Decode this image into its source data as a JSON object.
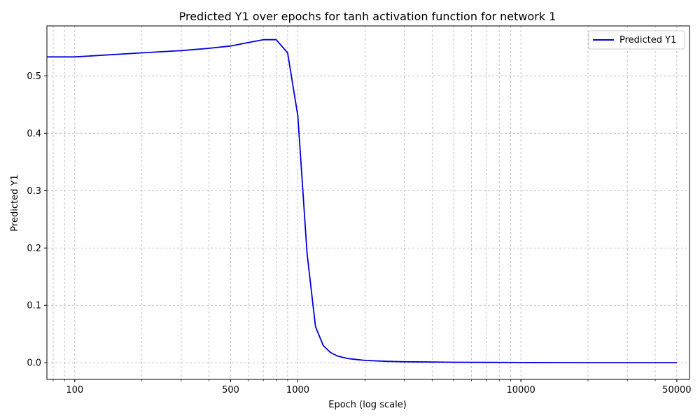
{
  "chart_data": {
    "type": "line",
    "title": "Predicted Y1 over epochs for tanh activation function for network 1",
    "xlabel": "Epoch (log scale)",
    "ylabel": "Predicted Y1",
    "x_scale": "log",
    "xlim": [
      75,
      57000
    ],
    "ylim": [
      -0.029,
      0.587
    ],
    "x_ticks": [
      100,
      500,
      1000,
      10000,
      50000
    ],
    "x_tick_labels": [
      "100",
      "500",
      "1000",
      "10000",
      "50000"
    ],
    "y_ticks": [
      0.0,
      0.1,
      0.2,
      0.3,
      0.4,
      0.5
    ],
    "y_tick_labels": [
      "0.0",
      "0.1",
      "0.2",
      "0.3",
      "0.4",
      "0.5"
    ],
    "grid": true,
    "legend_position": "top-right",
    "colors": {
      "series": "#0000dd",
      "grid": "#b0b0b0",
      "axes": "#000000"
    },
    "series": [
      {
        "name": "Predicted Y1",
        "x": [
          1,
          100,
          200,
          300,
          400,
          500,
          600,
          700,
          800,
          900,
          1000,
          1100,
          1200,
          1300,
          1400,
          1500,
          1600,
          1700,
          1800,
          2000,
          2500,
          3000,
          4000,
          5000,
          7000,
          10000,
          15000,
          20000,
          30000,
          50000
        ],
        "y": [
          0.533,
          0.533,
          0.54,
          0.544,
          0.548,
          0.552,
          0.558,
          0.563,
          0.563,
          0.54,
          0.43,
          0.19,
          0.063,
          0.03,
          0.018,
          0.012,
          0.009,
          0.007,
          0.006,
          0.004,
          0.0025,
          0.0018,
          0.0012,
          0.0009,
          0.0006,
          0.0004,
          0.0003,
          0.0002,
          0.0001,
          0.0001
        ]
      }
    ]
  }
}
